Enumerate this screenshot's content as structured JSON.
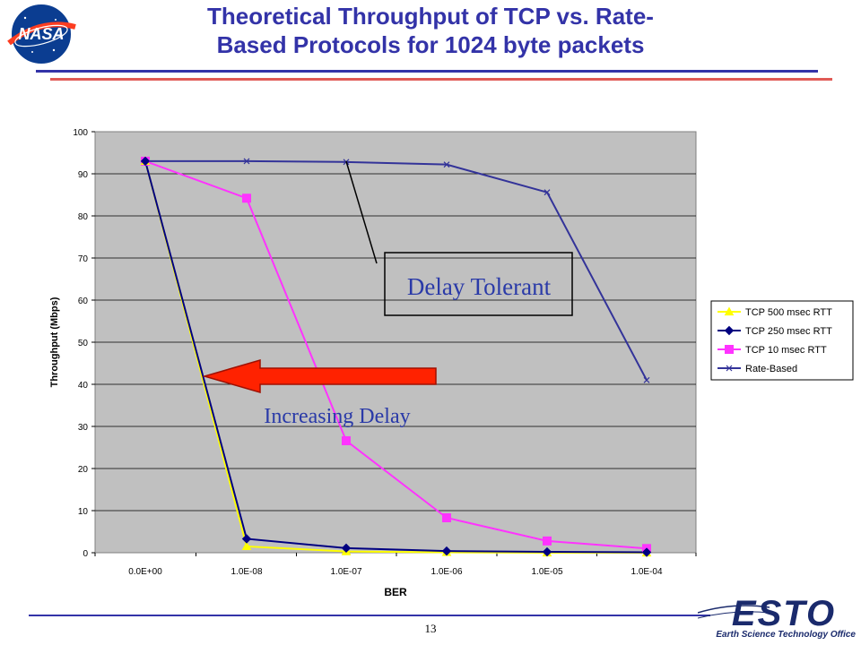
{
  "slide": {
    "title_line1": "Theoretical Throughput of TCP vs. Rate-",
    "title_line2": "Based Protocols for 1024 byte packets",
    "page_number": "13",
    "footer_logo_text": "ESTO",
    "footer_logo_sub": "Earth Science Technology Office",
    "nasa_logo_text": "NASA",
    "colors": {
      "title": "#3333a8",
      "rule_red": "#e05a55",
      "plot_bg": "#c0c0c0"
    }
  },
  "annotations": {
    "delay_tolerant": "Delay Tolerant",
    "increasing_delay": "Increasing Delay"
  },
  "chart_data": {
    "type": "line",
    "xlabel": "BER",
    "ylabel": "Throughput (Mbps)",
    "categories": [
      "0.0E+00",
      "1.0E-08",
      "1.0E-07",
      "1.0E-06",
      "1.0E-05",
      "1.0E-04"
    ],
    "ylim": [
      0,
      100
    ],
    "yticks": [
      0,
      10,
      20,
      30,
      40,
      50,
      60,
      70,
      80,
      90,
      100
    ],
    "grid": true,
    "legend": "right",
    "series": [
      {
        "name": "TCP 500 msec RTT",
        "color": "#ffff00",
        "marker": "triangle",
        "values": [
          93,
          1.5,
          0.3,
          0.1,
          0,
          0
        ]
      },
      {
        "name": "TCP 250 msec RTT",
        "color": "#000080",
        "marker": "diamond",
        "values": [
          93,
          3.3,
          1.1,
          0.4,
          0.2,
          0.1
        ]
      },
      {
        "name": "TCP 10 msec RTT",
        "color": "#ff33ff",
        "marker": "square",
        "values": [
          93,
          84.2,
          26.6,
          8.3,
          2.8,
          1.0
        ]
      },
      {
        "name": "Rate-Based",
        "color": "#333399",
        "marker": "x",
        "values": [
          93,
          93,
          92.8,
          92.2,
          85.6,
          41
        ]
      }
    ]
  }
}
